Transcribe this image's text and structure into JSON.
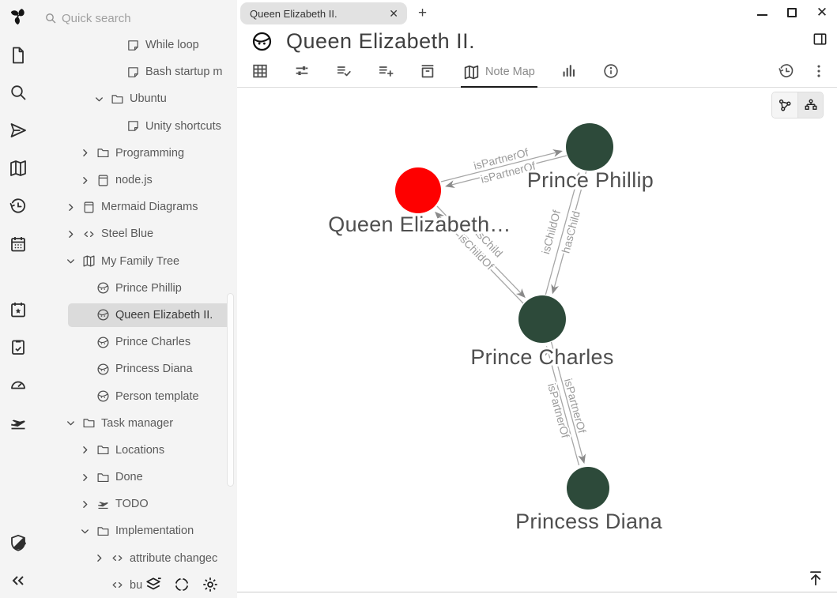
{
  "app": {
    "quick_search_placeholder": "Quick search"
  },
  "launcher": {
    "items": [
      "trilium-logo",
      "new-note-icon",
      "search-icon",
      "jump-to-note-icon",
      "note-map-icon",
      "recent-changes-icon",
      "calendar-icon",
      "calendar-star-icon",
      "task-list-icon",
      "dashboard-icon",
      "todo-plane-icon",
      "protected-session-icon",
      "collapse-pane-icon"
    ]
  },
  "tabs": {
    "label": "Queen Elizabeth II.",
    "close_glyph": "✕",
    "new_tab_glyph": "+"
  },
  "window_controls": {
    "minimize": "minimize",
    "maximize": "maximize",
    "close": "✕"
  },
  "note": {
    "title": "Queen Elizabeth II."
  },
  "ribbon": {
    "tabs": [
      "table-icon",
      "basic-properties-icon",
      "owned-attributes-icon",
      "promoted-attributes-icon",
      "archive-icon",
      "note-map-tab",
      "analytics-icon",
      "info-icon"
    ],
    "note_map_label": "Note Map",
    "right_icons": [
      "note-revisions-icon",
      "kebab-menu-icon"
    ]
  },
  "tree": {
    "items": [
      {
        "label": "While loop",
        "icon": "note",
        "chevron": null,
        "pad": 114,
        "selected": false
      },
      {
        "label": "Bash startup m",
        "icon": "note",
        "chevron": null,
        "pad": 114,
        "selected": false
      },
      {
        "label": "Ubuntu",
        "icon": "folder",
        "chevron": "down",
        "pad": 72,
        "selected": false
      },
      {
        "label": "Unity shortcuts",
        "icon": "note",
        "chevron": null,
        "pad": 114,
        "selected": false
      },
      {
        "label": "Programming",
        "icon": "folder",
        "chevron": "right",
        "pad": 54,
        "selected": false
      },
      {
        "label": "node.js",
        "icon": "book",
        "chevron": "right",
        "pad": 54,
        "selected": false
      },
      {
        "label": "Mermaid Diagrams",
        "icon": "book",
        "chevron": "right",
        "pad": 36,
        "selected": false
      },
      {
        "label": "Steel Blue",
        "icon": "code",
        "chevron": "right",
        "pad": 36,
        "selected": false
      },
      {
        "label": "My Family Tree",
        "icon": "map",
        "chevron": "down",
        "pad": 36,
        "selected": false
      },
      {
        "label": "Prince Phillip",
        "icon": "face",
        "chevron": null,
        "pad": 76,
        "selected": false
      },
      {
        "label": "Queen Elizabeth II.",
        "icon": "face",
        "chevron": null,
        "pad": 76,
        "selected": true
      },
      {
        "label": "Prince Charles",
        "icon": "face",
        "chevron": null,
        "pad": 76,
        "selected": false
      },
      {
        "label": "Princess Diana",
        "icon": "face",
        "chevron": null,
        "pad": 76,
        "selected": false
      },
      {
        "label": "Person template",
        "icon": "face",
        "chevron": null,
        "pad": 76,
        "selected": false
      },
      {
        "label": "Task manager",
        "icon": "folder",
        "chevron": "down",
        "pad": 36,
        "selected": false
      },
      {
        "label": "Locations",
        "icon": "folder",
        "chevron": "right",
        "pad": 54,
        "selected": false
      },
      {
        "label": "Done",
        "icon": "folder",
        "chevron": "right",
        "pad": 54,
        "selected": false
      },
      {
        "label": "TODO",
        "icon": "plane",
        "chevron": "right",
        "pad": 54,
        "selected": false
      },
      {
        "label": "Implementation",
        "icon": "folder",
        "chevron": "down",
        "pad": 54,
        "selected": false
      },
      {
        "label": "attribute changec",
        "icon": "code",
        "chevron": "right",
        "pad": 72,
        "selected": false
      },
      {
        "label": "bu",
        "icon": "code",
        "chevron": null,
        "pad": 94,
        "selected": false
      }
    ],
    "bottom_actions": [
      "layers-icon",
      "crosshair-icon",
      "gear-icon"
    ]
  },
  "map_view": {
    "mode_buttons": [
      "network-map-icon",
      "hierarchy-map-icon"
    ],
    "nodes": [
      {
        "label": "Queen Elizabeth…",
        "color": "#fe0000"
      },
      {
        "label": "Prince Phillip",
        "color": "#2d4a3a"
      },
      {
        "label": "Prince Charles",
        "color": "#2d4a3a"
      },
      {
        "label": "Princess Diana",
        "color": "#2d4a3a"
      }
    ],
    "edges": [
      {
        "from": "Queen Elizabeth II.",
        "to": "Prince Phillip",
        "label": "isPartnerOf"
      },
      {
        "from": "Prince Phillip",
        "to": "Queen Elizabeth II.",
        "label": "isPartnerOf"
      },
      {
        "from": "Queen Elizabeth II.",
        "to": "Prince Charles",
        "label": "hasChild"
      },
      {
        "from": "Prince Charles",
        "to": "Queen Elizabeth II.",
        "label": "isChildOf"
      },
      {
        "from": "Prince Charles",
        "to": "Prince Phillip",
        "label": "isChildOf"
      },
      {
        "from": "Prince Phillip",
        "to": "Prince Charles",
        "label": "hasChild"
      },
      {
        "from": "Prince Charles",
        "to": "Princess Diana",
        "label": "isPartnerOf"
      },
      {
        "from": "Princess Diana",
        "to": "Prince Charles",
        "label": "isPartnerOf"
      }
    ]
  }
}
